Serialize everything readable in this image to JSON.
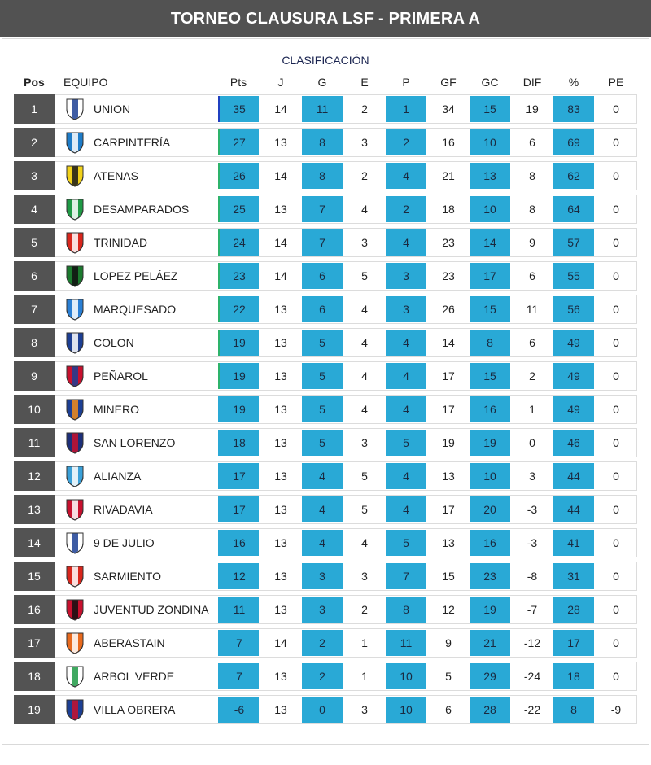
{
  "title": "TORNEO CLAUSURA LSF - PRIMERA A",
  "subtitle": "CLASIFICACIÓN",
  "columns": {
    "pos": "Pos",
    "team": "EQUIPO",
    "pts": "Pts",
    "j": "J",
    "g": "G",
    "e": "E",
    "p": "P",
    "gf": "GF",
    "gc": "GC",
    "dif": "DIF",
    "pct": "%",
    "pe": "PE"
  },
  "colors": {
    "header_bg": "#525252",
    "pos_bg": "#535353",
    "highlight_cells": "#29a9d6",
    "qualify_marker": "#2db36b",
    "leader_marker": "#2040c0"
  },
  "rows": [
    {
      "pos": "1",
      "team": "UNION",
      "pts": "35",
      "j": "14",
      "g": "11",
      "e": "2",
      "p": "1",
      "gf": "34",
      "gc": "15",
      "dif": "19",
      "pct": "83",
      "pe": "0",
      "badge": {
        "icon": "union-crest-icon",
        "primary": "#ffffff",
        "secondary": "#1c3f94"
      }
    },
    {
      "pos": "2",
      "team": "CARPINTERÍA",
      "pts": "27",
      "j": "13",
      "g": "8",
      "e": "3",
      "p": "2",
      "gf": "16",
      "gc": "10",
      "dif": "6",
      "pct": "69",
      "pe": "0",
      "badge": {
        "icon": "carpinteria-crest-icon",
        "primary": "#1e7cc8",
        "secondary": "#ffffff"
      }
    },
    {
      "pos": "3",
      "team": "ATENAS",
      "pts": "26",
      "j": "14",
      "g": "8",
      "e": "2",
      "p": "4",
      "gf": "21",
      "gc": "13",
      "dif": "8",
      "pct": "62",
      "pe": "0",
      "badge": {
        "icon": "atenas-crest-icon",
        "primary": "#f2d21a",
        "secondary": "#1a1a1a"
      }
    },
    {
      "pos": "4",
      "team": "DESAMPARADOS",
      "pts": "25",
      "j": "13",
      "g": "7",
      "e": "4",
      "p": "2",
      "gf": "18",
      "gc": "10",
      "dif": "8",
      "pct": "64",
      "pe": "0",
      "badge": {
        "icon": "desamparados-crest-icon",
        "primary": "#1f9a45",
        "secondary": "#ffffff"
      }
    },
    {
      "pos": "5",
      "team": "TRINIDAD",
      "pts": "24",
      "j": "14",
      "g": "7",
      "e": "3",
      "p": "4",
      "gf": "23",
      "gc": "14",
      "dif": "9",
      "pct": "57",
      "pe": "0",
      "badge": {
        "icon": "trinidad-crest-icon",
        "primary": "#d9261c",
        "secondary": "#ffffff"
      }
    },
    {
      "pos": "6",
      "team": "LOPEZ PELÁEZ",
      "pts": "23",
      "j": "14",
      "g": "6",
      "e": "5",
      "p": "3",
      "gf": "23",
      "gc": "17",
      "dif": "6",
      "pct": "55",
      "pe": "0",
      "badge": {
        "icon": "lopez-pelaez-crest-icon",
        "primary": "#1b7a2e",
        "secondary": "#111111"
      }
    },
    {
      "pos": "7",
      "team": "MARQUESADO",
      "pts": "22",
      "j": "13",
      "g": "6",
      "e": "4",
      "p": "3",
      "gf": "26",
      "gc": "15",
      "dif": "11",
      "pct": "56",
      "pe": "0",
      "badge": {
        "icon": "marquesado-crest-icon",
        "primary": "#2a7fd4",
        "secondary": "#ffffff"
      }
    },
    {
      "pos": "8",
      "team": "COLON",
      "pts": "19",
      "j": "13",
      "g": "5",
      "e": "4",
      "p": "4",
      "gf": "14",
      "gc": "8",
      "dif": "6",
      "pct": "49",
      "pe": "0",
      "badge": {
        "icon": "colon-crest-icon",
        "primary": "#1c3f94",
        "secondary": "#ffffff"
      }
    },
    {
      "pos": "9",
      "team": "PEÑAROL",
      "pts": "19",
      "j": "13",
      "g": "5",
      "e": "4",
      "p": "4",
      "gf": "17",
      "gc": "15",
      "dif": "2",
      "pct": "49",
      "pe": "0",
      "badge": {
        "icon": "penarol-crest-icon",
        "primary": "#c8102e",
        "secondary": "#1c3f94"
      }
    },
    {
      "pos": "10",
      "team": "MINERO",
      "pts": "19",
      "j": "13",
      "g": "5",
      "e": "4",
      "p": "4",
      "gf": "17",
      "gc": "16",
      "dif": "1",
      "pct": "49",
      "pe": "0",
      "badge": {
        "icon": "minero-crest-icon",
        "primary": "#1c3f94",
        "secondary": "#f28c1a"
      }
    },
    {
      "pos": "11",
      "team": "SAN LORENZO",
      "pts": "18",
      "j": "13",
      "g": "5",
      "e": "3",
      "p": "5",
      "gf": "19",
      "gc": "19",
      "dif": "0",
      "pct": "46",
      "pe": "0",
      "badge": {
        "icon": "san-lorenzo-crest-icon",
        "primary": "#1c2f7a",
        "secondary": "#c8102e"
      }
    },
    {
      "pos": "12",
      "team": "ALIANZA",
      "pts": "17",
      "j": "13",
      "g": "4",
      "e": "5",
      "p": "4",
      "gf": "13",
      "gc": "10",
      "dif": "3",
      "pct": "44",
      "pe": "0",
      "badge": {
        "icon": "alianza-crest-icon",
        "primary": "#3aa0d8",
        "secondary": "#ffffff"
      }
    },
    {
      "pos": "13",
      "team": "RIVADAVIA",
      "pts": "17",
      "j": "13",
      "g": "4",
      "e": "5",
      "p": "4",
      "gf": "17",
      "gc": "20",
      "dif": "-3",
      "pct": "44",
      "pe": "0",
      "badge": {
        "icon": "rivadavia-crest-icon",
        "primary": "#c8102e",
        "secondary": "#ffffff"
      }
    },
    {
      "pos": "14",
      "team": "9 DE JULIO",
      "pts": "16",
      "j": "13",
      "g": "4",
      "e": "4",
      "p": "5",
      "gf": "13",
      "gc": "16",
      "dif": "-3",
      "pct": "41",
      "pe": "0",
      "badge": {
        "icon": "nueve-de-julio-crest-icon",
        "primary": "#ffffff",
        "secondary": "#1c3f94"
      }
    },
    {
      "pos": "15",
      "team": "SARMIENTO",
      "pts": "12",
      "j": "13",
      "g": "3",
      "e": "3",
      "p": "7",
      "gf": "15",
      "gc": "23",
      "dif": "-8",
      "pct": "31",
      "pe": "0",
      "badge": {
        "icon": "sarmiento-crest-icon",
        "primary": "#d9261c",
        "secondary": "#ffffff"
      }
    },
    {
      "pos": "16",
      "team": "JUVENTUD ZONDINA",
      "pts": "11",
      "j": "13",
      "g": "3",
      "e": "2",
      "p": "8",
      "gf": "12",
      "gc": "19",
      "dif": "-7",
      "pct": "28",
      "pe": "0",
      "badge": {
        "icon": "juventud-zondina-crest-icon",
        "primary": "#c8102e",
        "secondary": "#111111"
      }
    },
    {
      "pos": "17",
      "team": "ABERASTAIN",
      "pts": "7",
      "j": "14",
      "g": "2",
      "e": "1",
      "p": "11",
      "gf": "9",
      "gc": "21",
      "dif": "-12",
      "pct": "17",
      "pe": "0",
      "badge": {
        "icon": "aberastain-crest-icon",
        "primary": "#e86a1e",
        "secondary": "#ffffff"
      }
    },
    {
      "pos": "18",
      "team": "ARBOL VERDE",
      "pts": "7",
      "j": "13",
      "g": "2",
      "e": "1",
      "p": "10",
      "gf": "5",
      "gc": "29",
      "dif": "-24",
      "pct": "18",
      "pe": "0",
      "badge": {
        "icon": "arbol-verde-crest-icon",
        "primary": "#ffffff",
        "secondary": "#1f9a45"
      }
    },
    {
      "pos": "19",
      "team": "VILLA OBRERA",
      "pts": "-6",
      "j": "13",
      "g": "0",
      "e": "3",
      "p": "10",
      "gf": "6",
      "gc": "28",
      "dif": "-22",
      "pct": "8",
      "pe": "-9",
      "badge": {
        "icon": "villa-obrera-crest-icon",
        "primary": "#1c3f94",
        "secondary": "#c8102e"
      }
    }
  ]
}
